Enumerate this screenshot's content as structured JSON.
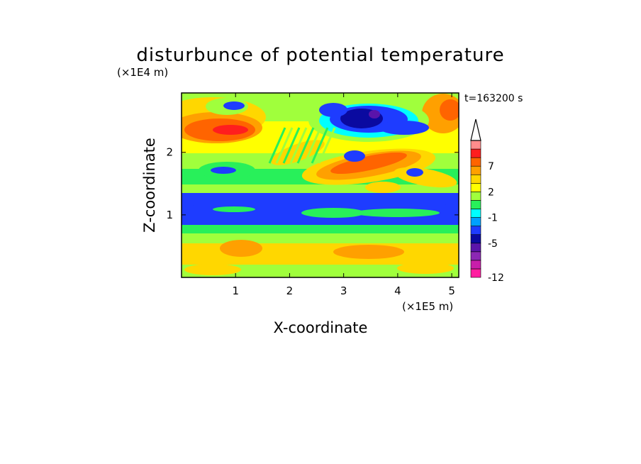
{
  "chart_data": {
    "type": "heatmap",
    "title": "disturbunce of potential temperature",
    "xlabel": "X-coordinate",
    "ylabel": "Z-coordinate",
    "x_unit": "(×1E5 m)",
    "y_unit": "(×1E4 m)",
    "time_label": "t=163200 s",
    "xlim": [
      0,
      5.13
    ],
    "ylim": [
      0,
      2.95
    ],
    "xticks": [
      "1",
      "2",
      "3",
      "4",
      "5"
    ],
    "yticks": [
      "1",
      "2"
    ],
    "colorbar": {
      "levels": [
        -12,
        -10,
        -8,
        -6,
        -5,
        -4,
        -3,
        -1,
        0,
        1,
        2,
        3,
        4,
        7,
        8,
        9
      ],
      "tick_labels": [
        "-12",
        "-5",
        "-1",
        "2",
        "7"
      ],
      "tick_values": [
        -12,
        -5,
        -1,
        2,
        7
      ],
      "extend": "max",
      "colors": [
        "#ff1ea0",
        "#c81eaa",
        "#8c28b4",
        "#5a14aa",
        "#0a0aa0",
        "#1e3cff",
        "#00a0ff",
        "#00ffff",
        "#28f05a",
        "#a0ff3c",
        "#ffff00",
        "#ffd700",
        "#ffa000",
        "#ff6400",
        "#ff1e1e",
        "#ff8c8c",
        "#ffc8c8"
      ]
    },
    "grid": false,
    "legend": "colorbar-right"
  }
}
